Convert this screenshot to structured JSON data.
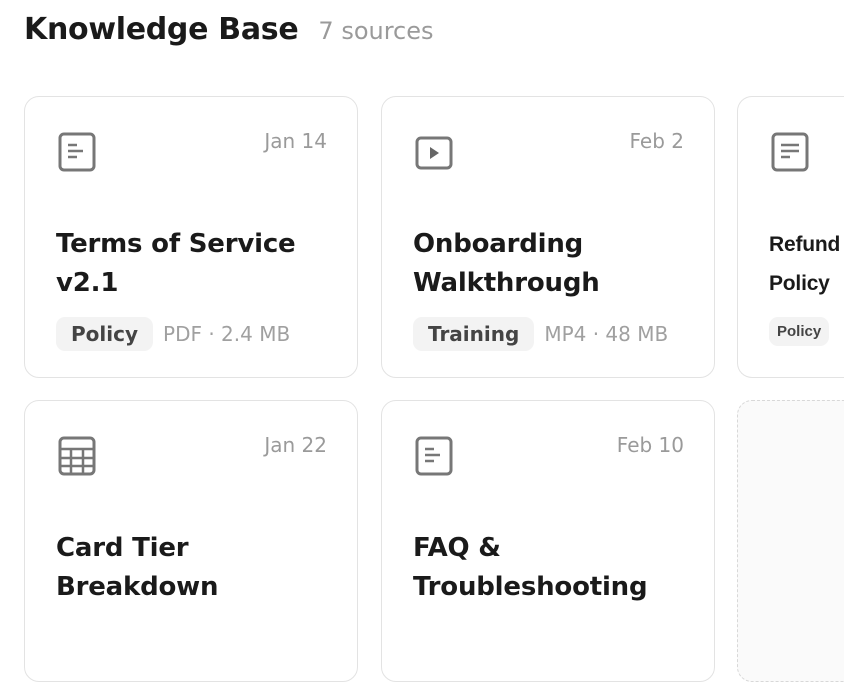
{
  "header": {
    "title": "Knowledge Base",
    "count": "7 sources"
  },
  "cards": [
    {
      "icon": "document-icon",
      "date": "Jan 14",
      "title": "Terms of Service v2.1",
      "tag": "Policy",
      "meta": "PDF · 2.4 MB"
    },
    {
      "icon": "video-play-icon",
      "date": "Feb 2",
      "title": "Onboarding Walkthrough",
      "tag": "Training",
      "meta": "MP4 · 48 MB"
    },
    {
      "icon": "document-icon",
      "date": "",
      "title": "Refund Policy",
      "tag": "Policy",
      "meta": ""
    },
    {
      "icon": "table-icon",
      "date": "Jan 22",
      "title": "Card Tier Breakdown",
      "tag": "",
      "meta": ""
    },
    {
      "icon": "document-icon",
      "date": "Feb 10",
      "title": "FAQ & Troubleshooting",
      "tag": "",
      "meta": ""
    }
  ],
  "colors": {
    "border": "#e3e3e3",
    "muted": "#9a9a9a",
    "tag_bg": "#f3f3f3",
    "text": "#1a1a1a"
  }
}
